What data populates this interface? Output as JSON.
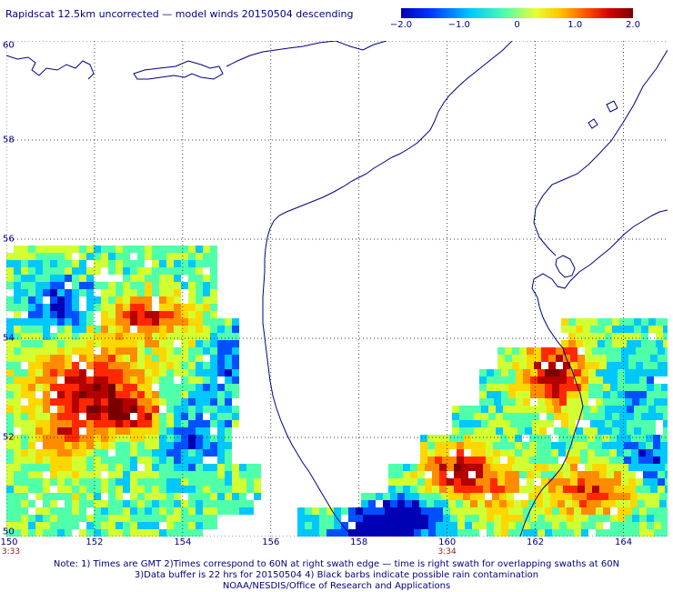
{
  "title": "Rapidscat 12.5km uncorrected — model winds 20150504 descending",
  "colorbar": {
    "ticks": [
      "−2.0",
      "−1.0",
      "0",
      "1.0",
      "2.0"
    ],
    "tick_values": [
      -2.0,
      -1.0,
      0,
      1.0,
      2.0
    ],
    "range": [
      -2.0,
      2.0
    ],
    "colors": [
      "#0000b4",
      "#0050ff",
      "#00c8ff",
      "#50ffaa",
      "#d2ff32",
      "#ffd700",
      "#ff8c00",
      "#ff2800",
      "#b40000",
      "#780000"
    ]
  },
  "map": {
    "lon_labels": [
      "150",
      "152",
      "154",
      "156",
      "158",
      "160",
      "162",
      "164"
    ],
    "lon_values": [
      150,
      152,
      154,
      156,
      158,
      160,
      162,
      164
    ],
    "lat_labels": [
      "50",
      "52",
      "54",
      "56",
      "58",
      "60"
    ],
    "lat_values": [
      50,
      52,
      54,
      56,
      58,
      60
    ],
    "lon_range": [
      150,
      165
    ],
    "lat_range": [
      50,
      60
    ],
    "coastline_color": "#000080",
    "grid": "dotted"
  },
  "times": [
    {
      "label": "3:33",
      "lon": 150
    },
    {
      "label": "3:34",
      "lon": 160
    }
  ],
  "notes": [
    "Note: 1) Times are GMT 2)Times correspond to 60N at right swath edge — time is right swath for overlapping swaths at 60N",
    "3)Data buffer is 22 hrs for 20150504 4) Black barbs indicate possible rain contamination",
    "NOAA/NESDIS/Office of Research and Applications"
  ]
}
